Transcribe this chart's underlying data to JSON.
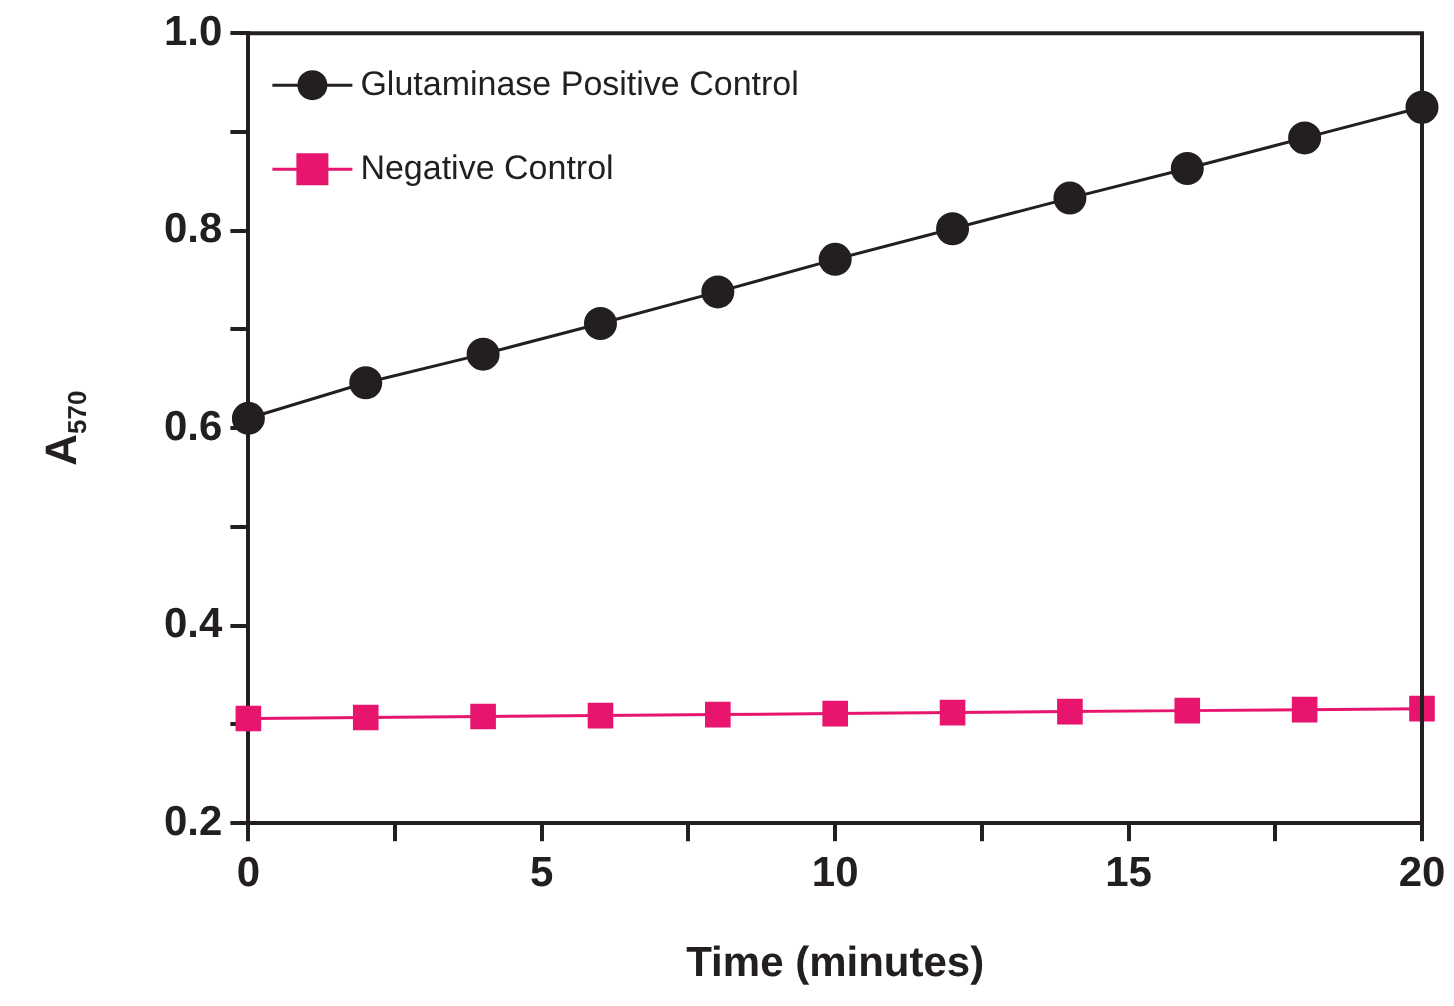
{
  "chart_data": {
    "type": "line",
    "xlabel": "Time (minutes)",
    "ylabel": "A$_{570}$",
    "x": [
      0,
      2,
      4,
      6,
      8,
      10,
      12,
      14,
      16,
      18,
      20
    ],
    "series": [
      {
        "name": "Glutaminase Positive Control",
        "color": "#231f20",
        "marker": "circle",
        "values": [
          0.61,
          0.646,
          0.675,
          0.706,
          0.738,
          0.771,
          0.802,
          0.833,
          0.863,
          0.894,
          0.925
        ]
      },
      {
        "name": "Negative Control",
        "color": "#e8156e",
        "marker": "square",
        "values": [
          0.306,
          0.307,
          0.308,
          0.309,
          0.31,
          0.311,
          0.312,
          0.313,
          0.314,
          0.315,
          0.316
        ]
      }
    ],
    "xlim": [
      0,
      20
    ],
    "xticks": [
      0,
      {
        "value": 2.5,
        "label": null
      },
      5,
      {
        "value": 7.5,
        "label": null
      },
      10,
      {
        "value": 12.5,
        "label": null
      },
      15,
      {
        "value": 17.5,
        "label": null
      },
      20
    ],
    "ylim": [
      0.2,
      1.0
    ],
    "yticks": [
      {
        "value": 0.2,
        "label": "0.2"
      },
      {
        "value": 0.3,
        "label": null
      },
      {
        "value": 0.4,
        "label": "0.4"
      },
      {
        "value": 0.5,
        "label": null
      },
      {
        "value": 0.6,
        "label": "0.6"
      },
      {
        "value": 0.7,
        "label": null
      },
      {
        "value": 0.8,
        "label": "0.8"
      },
      {
        "value": 0.9,
        "label": null
      },
      {
        "value": 1.0,
        "label": "1.0"
      }
    ],
    "grid": false,
    "legend": "top left",
    "line_style": "solid"
  }
}
